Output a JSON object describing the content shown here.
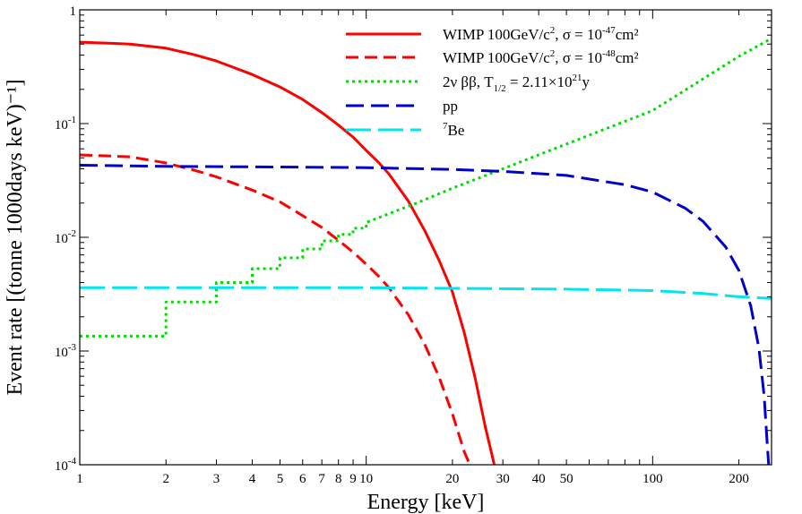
{
  "chart_data": {
    "type": "line",
    "title": "",
    "xlabel": "Energy [keV]",
    "ylabel": "Event rate [(tonne 1000days keV)⁻¹]",
    "xscale": "log",
    "yscale": "log",
    "xlim": [
      1,
      260
    ],
    "ylim": [
      0.0001,
      1
    ],
    "x_ticks": [
      {
        "value": 1,
        "label": "1"
      },
      {
        "value": 2,
        "label": "2"
      },
      {
        "value": 3,
        "label": "3"
      },
      {
        "value": 4,
        "label": "4"
      },
      {
        "value": 5,
        "label": "5"
      },
      {
        "value": 6,
        "label": "6"
      },
      {
        "value": 7,
        "label": "7"
      },
      {
        "value": 8,
        "label": "8"
      },
      {
        "value": 9,
        "label": "9"
      },
      {
        "value": 10,
        "label": "10"
      },
      {
        "value": 20,
        "label": "20"
      },
      {
        "value": 30,
        "label": "30"
      },
      {
        "value": 40,
        "label": "40"
      },
      {
        "value": 50,
        "label": "50"
      },
      {
        "value": 100,
        "label": "100"
      },
      {
        "value": 200,
        "label": "200"
      }
    ],
    "y_ticks": [
      {
        "value": 1,
        "base": "1",
        "exp": ""
      },
      {
        "value": 0.1,
        "base": "10",
        "exp": "-1"
      },
      {
        "value": 0.01,
        "base": "10",
        "exp": "-2"
      },
      {
        "value": 0.001,
        "base": "10",
        "exp": "-3"
      },
      {
        "value": 0.0001,
        "base": "10",
        "exp": "-4"
      }
    ],
    "legend_position": "top-right",
    "series": [
      {
        "name": "WIMP 100GeV/c², σ = 10⁻⁴⁷cm²",
        "legend": {
          "text": "WIMP 100GeV/c",
          "sup1": "2",
          "text2": ", σ = 10",
          "sup2": "-47",
          "text3": "cm²"
        },
        "color": "#ff0000",
        "style": "solid",
        "x": [
          1,
          1.5,
          2,
          2.5,
          3,
          4,
          5,
          6,
          7,
          8,
          9,
          10,
          11,
          12,
          14,
          16,
          18,
          20,
          22,
          24,
          26,
          28
        ],
        "y": [
          0.52,
          0.5,
          0.46,
          0.405,
          0.355,
          0.27,
          0.21,
          0.163,
          0.125,
          0.097,
          0.076,
          0.058,
          0.046,
          0.036,
          0.021,
          0.0115,
          0.0062,
          0.0033,
          0.00145,
          0.00058,
          0.00022,
          0.0001
        ]
      },
      {
        "name": "WIMP 100GeV/c², σ = 10⁻⁴⁸cm²",
        "legend": {
          "text": "WIMP 100GeV/c",
          "sup1": "2",
          "text2": ", σ = 10",
          "sup2": "-48",
          "text3": "cm²"
        },
        "color": "#ff0000",
        "style": "dashed",
        "x": [
          1,
          1.5,
          2,
          2.5,
          3,
          4,
          5,
          6,
          7,
          8,
          9,
          10,
          11,
          12,
          14,
          16,
          18,
          20,
          22,
          23
        ],
        "y": [
          0.053,
          0.051,
          0.045,
          0.039,
          0.034,
          0.026,
          0.0205,
          0.0155,
          0.0122,
          0.0094,
          0.0074,
          0.0058,
          0.0046,
          0.0036,
          0.0021,
          0.00115,
          0.00058,
          0.00028,
          0.00013,
          0.0001
        ]
      },
      {
        "name": "2ν ββ, T₁/₂ = 2.11×10²¹y",
        "legend": {
          "text": "2ν ββ, T",
          "sub": "1/2",
          "text2": " = 2.11×10",
          "sup": "21",
          "text3": "y"
        },
        "color": "#00dd00",
        "style": "dotted",
        "x": [
          1,
          2,
          2,
          3,
          3,
          4,
          4,
          5,
          5,
          6,
          6,
          7,
          7,
          8,
          8,
          9,
          9,
          10,
          10,
          15,
          20,
          30,
          50,
          100,
          200,
          260
        ],
        "y": [
          0.00135,
          0.00135,
          0.0027,
          0.0027,
          0.004,
          0.004,
          0.0053,
          0.0053,
          0.0066,
          0.0066,
          0.0079,
          0.0079,
          0.0093,
          0.0093,
          0.0106,
          0.0106,
          0.012,
          0.012,
          0.0135,
          0.02,
          0.027,
          0.04,
          0.066,
          0.13,
          0.39,
          0.56
        ]
      },
      {
        "name": "pp",
        "legend": {
          "text": "pp"
        },
        "color": "#0000cc",
        "style": "dashed",
        "x": [
          1,
          2,
          5,
          10,
          20,
          30,
          50,
          80,
          100,
          130,
          150,
          180,
          200,
          220,
          235,
          245,
          250,
          254
        ],
        "y": [
          0.043,
          0.042,
          0.0415,
          0.041,
          0.0395,
          0.038,
          0.035,
          0.029,
          0.025,
          0.018,
          0.0138,
          0.0082,
          0.0051,
          0.0025,
          0.00105,
          0.0004,
          0.00018,
          0.0001
        ]
      },
      {
        "name": "⁷Be",
        "legend": {
          "sup": "7",
          "text": "Be"
        },
        "color": "#00e5ee",
        "style": "longdash",
        "x": [
          1,
          10,
          50,
          100,
          150,
          200,
          260
        ],
        "y": [
          0.0036,
          0.0036,
          0.0035,
          0.0034,
          0.0032,
          0.003,
          0.0029
        ]
      }
    ]
  }
}
